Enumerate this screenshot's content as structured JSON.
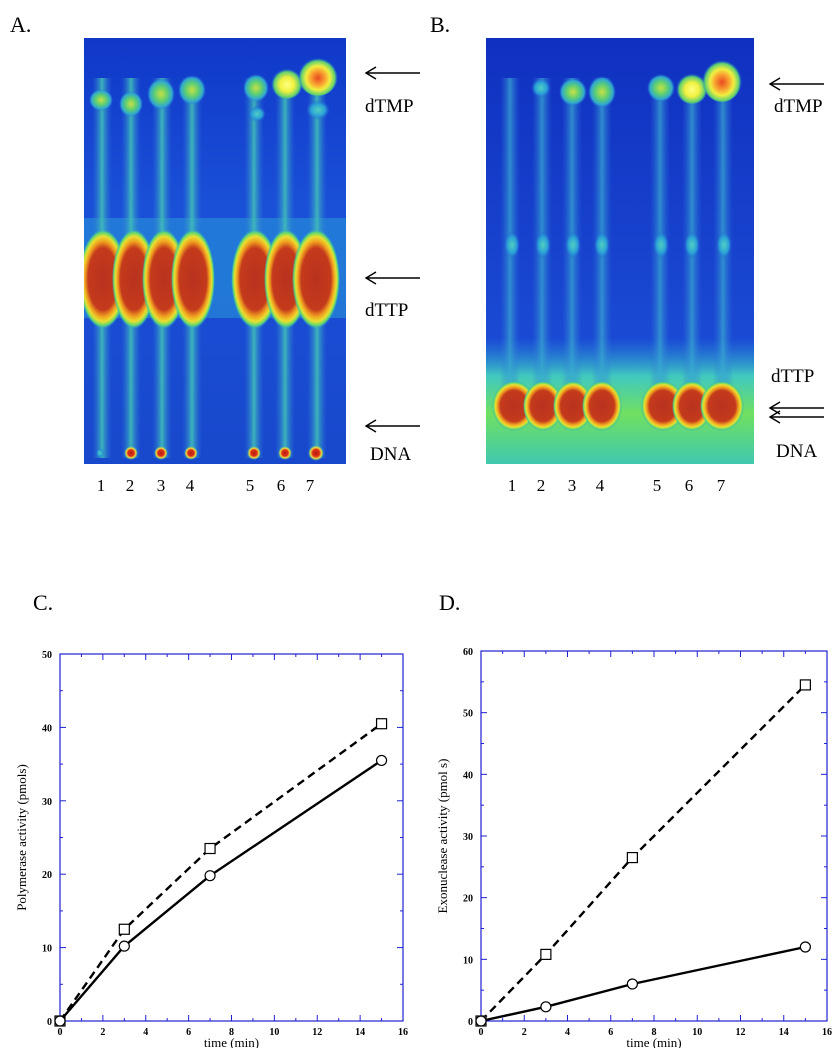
{
  "panels": {
    "A": {
      "letter": "A.",
      "labels": {
        "top": "dTMP",
        "middle": "dTTP",
        "bottom": "DNA"
      },
      "lanes": [
        "1",
        "2",
        "3",
        "4",
        "5",
        "6",
        "7"
      ]
    },
    "B": {
      "letter": "B.",
      "labels": {
        "top": "dTMP",
        "dttp": "dTTP",
        "dna": "DNA"
      },
      "lanes": [
        "1",
        "2",
        "3",
        "4",
        "5",
        "6",
        "7"
      ]
    },
    "C": {
      "letter": "C."
    },
    "D": {
      "letter": "D."
    }
  },
  "chart_data": [
    {
      "id": "C",
      "type": "line",
      "xlabel": "time (min)",
      "ylabel": "Polymerase activity (pmols)",
      "xlim": [
        0,
        16
      ],
      "ylim": [
        0,
        50
      ],
      "xticks": [
        0,
        2,
        4,
        6,
        8,
        10,
        12,
        14,
        16
      ],
      "yticks": [
        0,
        10,
        20,
        30,
        40,
        50
      ],
      "series": [
        {
          "marker": "square",
          "dash": true,
          "x": [
            0,
            3,
            7,
            15
          ],
          "y": [
            0,
            12.5,
            23.5,
            40.5
          ]
        },
        {
          "marker": "circle",
          "dash": false,
          "x": [
            0,
            3,
            7,
            15
          ],
          "y": [
            0,
            10.2,
            19.8,
            35.5
          ]
        }
      ]
    },
    {
      "id": "D",
      "type": "line",
      "xlabel": "time (min)",
      "ylabel": "Exonuclease activity (pmol   s)",
      "xlim": [
        0,
        16
      ],
      "ylim": [
        0,
        60
      ],
      "xticks": [
        0,
        2,
        4,
        6,
        8,
        10,
        12,
        14,
        16
      ],
      "yticks": [
        0,
        10,
        20,
        30,
        40,
        50,
        60
      ],
      "series": [
        {
          "marker": "square",
          "dash": true,
          "x": [
            0,
            3,
            7,
            15
          ],
          "y": [
            0,
            10.8,
            26.5,
            54.5
          ]
        },
        {
          "marker": "circle",
          "dash": false,
          "x": [
            0,
            3,
            7,
            15
          ],
          "y": [
            0,
            2.3,
            6,
            12
          ]
        }
      ]
    }
  ]
}
